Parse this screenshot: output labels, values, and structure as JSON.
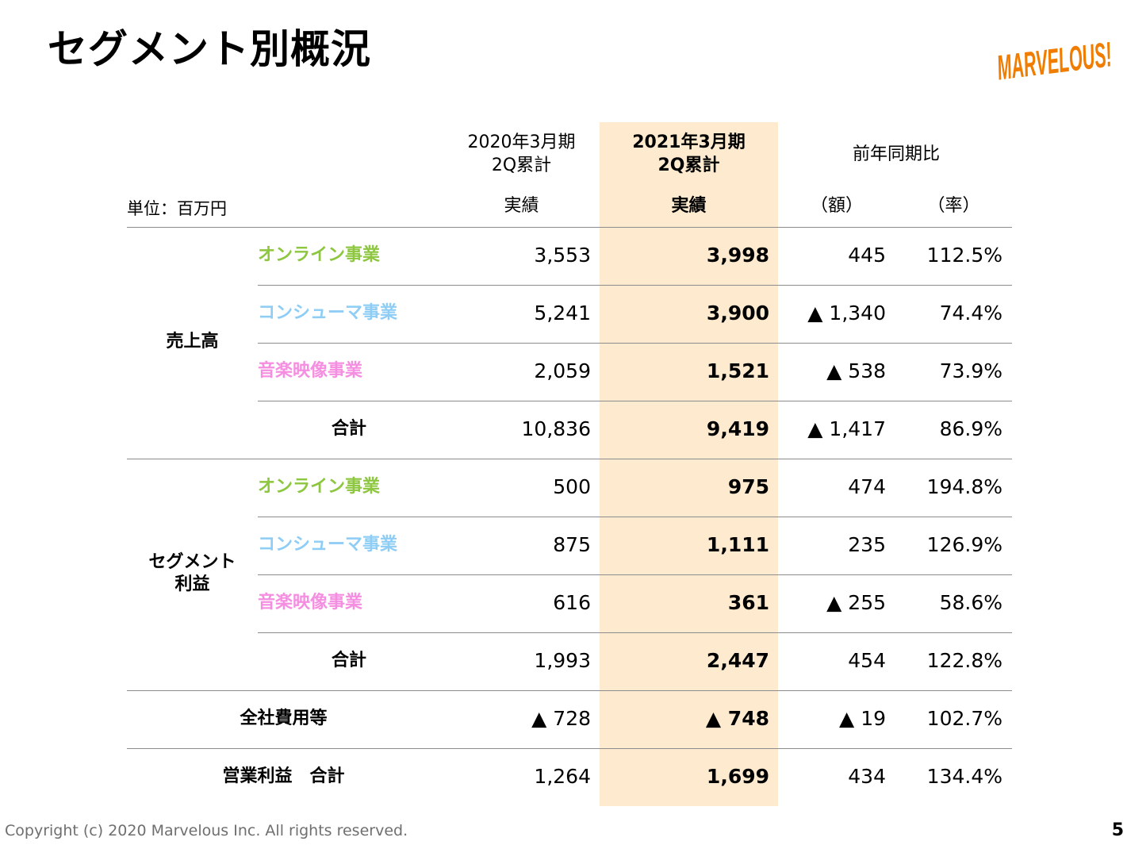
{
  "title": "セグメント別概況",
  "logo": {
    "text": "MARVELOUS!",
    "color": "#f07d00"
  },
  "unit_label": "単位：百万円",
  "columns": {
    "prev": {
      "line1": "2020年3月期",
      "line2": "2Q累計",
      "sub": "実績"
    },
    "curr": {
      "line1": "2021年3月期",
      "line2": "2Q累計",
      "sub": "実績"
    },
    "yoy": {
      "label": "前年同期比",
      "amount": "（額）",
      "rate": "（率）"
    }
  },
  "colors": {
    "online": "#8dc63f",
    "consumer": "#8ecdf5",
    "music": "#f58ee0",
    "highlight": "#fdeacf"
  },
  "groups": {
    "sales": {
      "label": "売上高"
    },
    "segment_profit": {
      "line1": "セグメント",
      "line2": "利益"
    }
  },
  "rows": [
    {
      "label": "オンライン事業",
      "prev": "3,553",
      "curr": "3,998",
      "amount": "445",
      "rate": "112.5%"
    },
    {
      "label": "コンシューマ事業",
      "prev": "5,241",
      "curr": "3,900",
      "amount": "▲ 1,340",
      "rate": "74.4%"
    },
    {
      "label": "音楽映像事業",
      "prev": "2,059",
      "curr": "1,521",
      "amount": "▲ 538",
      "rate": "73.9%"
    },
    {
      "label": "合計",
      "prev": "10,836",
      "curr": "9,419",
      "amount": "▲ 1,417",
      "rate": "86.9%"
    },
    {
      "label": "オンライン事業",
      "prev": "500",
      "curr": "975",
      "amount": "474",
      "rate": "194.8%"
    },
    {
      "label": "コンシューマ事業",
      "prev": "875",
      "curr": "1,111",
      "amount": "235",
      "rate": "126.9%"
    },
    {
      "label": "音楽映像事業",
      "prev": "616",
      "curr": "361",
      "amount": "▲ 255",
      "rate": "58.6%"
    },
    {
      "label": "合計",
      "prev": "1,993",
      "curr": "2,447",
      "amount": "454",
      "rate": "122.8%"
    },
    {
      "label": "全社費用等",
      "prev": "▲ 728",
      "curr": "▲ 748",
      "amount": "▲ 19",
      "rate": "102.7%"
    },
    {
      "label": "営業利益　合計",
      "prev": "1,264",
      "curr": "1,699",
      "amount": "434",
      "rate": "134.4%"
    }
  ],
  "footer": "Copyright (c) 2020 Marvelous Inc. All rights reserved.",
  "page_number": "5"
}
